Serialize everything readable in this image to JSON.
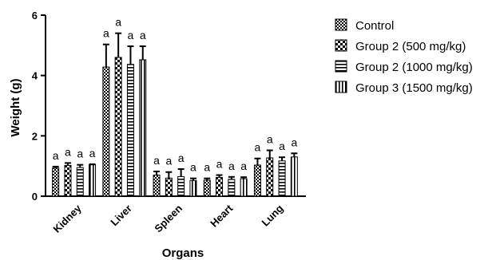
{
  "chart_data": {
    "type": "bar",
    "xlabel": "Organs",
    "ylabel": "Weight (g)",
    "ylim": [
      0,
      6
    ],
    "yticks": [
      "0",
      "2",
      "4",
      "6"
    ],
    "categories": [
      "Kidney",
      "Liver",
      "Spleen",
      "Heart",
      "Lung"
    ],
    "legend_position": "top-right",
    "series": [
      {
        "name": "Control",
        "pattern": "checker-fine",
        "values": [
          0.93,
          4.28,
          0.7,
          0.53,
          1.03
        ],
        "errors": [
          0.05,
          0.75,
          0.12,
          0.06,
          0.22
        ],
        "sig": [
          "a",
          "a",
          "a",
          "a",
          "a"
        ]
      },
      {
        "name": "Group 2 (500 mg/kg)",
        "pattern": "checker-coarse",
        "values": [
          1.02,
          4.6,
          0.6,
          0.62,
          1.27
        ],
        "errors": [
          0.08,
          0.8,
          0.2,
          0.08,
          0.25
        ],
        "sig": [
          "a",
          "a",
          "a",
          "a",
          "a"
        ]
      },
      {
        "name": "Group 2 (1000 mg/kg)",
        "pattern": "horizontal",
        "values": [
          0.95,
          4.37,
          0.65,
          0.56,
          1.17
        ],
        "errors": [
          0.09,
          0.6,
          0.25,
          0.08,
          0.12
        ],
        "sig": [
          "a",
          "a",
          "a",
          "a",
          "a"
        ]
      },
      {
        "name": "Group 3 (1500 mg/kg)",
        "pattern": "vertical",
        "values": [
          1.04,
          4.52,
          0.52,
          0.58,
          1.3
        ],
        "errors": [
          0.02,
          0.45,
          0.07,
          0.05,
          0.12
        ],
        "sig": [
          "a",
          "a",
          "a",
          "a",
          "a"
        ]
      }
    ]
  }
}
